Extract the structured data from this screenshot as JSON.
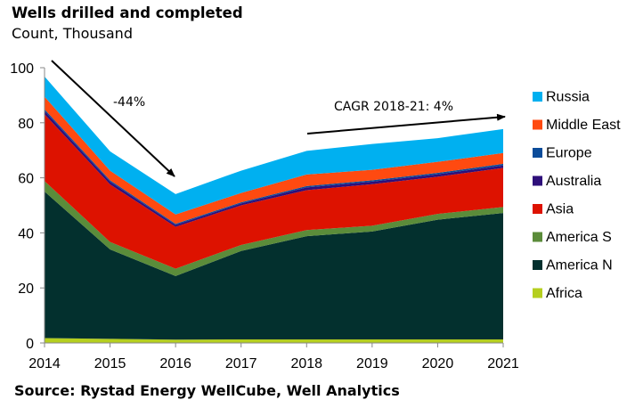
{
  "chart_data": {
    "type": "area",
    "stacked": true,
    "title": "Wells drilled and completed",
    "subtitle": "Count, Thousand",
    "source": "Source: Rystad Energy WellCube, Well Analytics",
    "x": [
      "2014",
      "2015",
      "2016",
      "2017",
      "2018",
      "2019",
      "2020",
      "2021"
    ],
    "yticks": [
      "0",
      "20",
      "40",
      "60",
      "80",
      "100"
    ],
    "ylim": [
      0,
      100
    ],
    "grid": false,
    "legend_placement": "right",
    "series": [
      {
        "name": "Africa",
        "color": "#B5CF1F",
        "values": [
          1.8,
          1.5,
          1.2,
          1.3,
          1.3,
          1.3,
          1.3,
          1.3
        ]
      },
      {
        "name": "America N",
        "color": "#03302E",
        "values": [
          53.2,
          32.5,
          23.1,
          32.1,
          37.5,
          39.2,
          43.5,
          45.9
        ]
      },
      {
        "name": "America S",
        "color": "#5B8C3A",
        "values": [
          3.8,
          2.7,
          2.7,
          2.2,
          2.2,
          2.1,
          2.1,
          2.2
        ]
      },
      {
        "name": "Asia",
        "color": "#DD1200",
        "values": [
          24.3,
          20.9,
          15.2,
          14.4,
          14.5,
          15.1,
          13.5,
          14.2
        ]
      },
      {
        "name": "Australia",
        "color": "#2E0F7A",
        "values": [
          1.2,
          1.0,
          0.7,
          0.7,
          1.0,
          0.9,
          0.9,
          0.9
        ]
      },
      {
        "name": "Europe",
        "color": "#0B4C9A",
        "values": [
          0.6,
          0.5,
          0.4,
          0.4,
          0.5,
          0.5,
          0.5,
          0.6
        ]
      },
      {
        "name": "Middle East",
        "color": "#FF4A10",
        "values": [
          4.6,
          3.5,
          3.4,
          3.4,
          4.2,
          3.8,
          4.0,
          3.9
        ]
      },
      {
        "name": "Russia",
        "color": "#00B0F0",
        "values": [
          7.3,
          7.0,
          7.4,
          8.1,
          8.6,
          9.4,
          8.6,
          8.7
        ]
      }
    ],
    "annotations": [
      {
        "text": "-44%",
        "from": "2014",
        "to": "2016"
      },
      {
        "text": "CAGR 2018-21: 4%",
        "from": "2018",
        "to": "2021"
      }
    ]
  }
}
